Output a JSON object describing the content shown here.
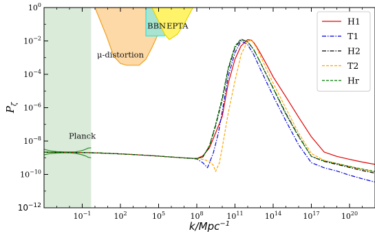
{
  "chart_data": {
    "type": "line",
    "xlabel": "k/Mpc",
    "xlabel_sup": "−1",
    "ylabel": "P",
    "ylabel_sub": "ζ",
    "x_scale": "log",
    "y_scale": "log",
    "xlim": [
      0.0001,
      1e+22
    ],
    "ylim": [
      1e-12,
      1
    ],
    "x_ticks": [
      {
        "value": 0.1,
        "base": "10",
        "exp": "−1"
      },
      {
        "value": 100,
        "base": "10",
        "exp": "2"
      },
      {
        "value": 100000,
        "base": "10",
        "exp": "5"
      },
      {
        "value": 100000000.0,
        "base": "10",
        "exp": "8"
      },
      {
        "value": 100000000000.0,
        "base": "10",
        "exp": "11"
      },
      {
        "value": 100000000000000.0,
        "base": "10",
        "exp": "14"
      },
      {
        "value": 1e+17,
        "base": "10",
        "exp": "17"
      },
      {
        "value": 1e+20,
        "base": "10",
        "exp": "20"
      }
    ],
    "y_ticks": [
      {
        "value": 1,
        "base": "10",
        "exp": "0"
      },
      {
        "value": 0.01,
        "base": "10",
        "exp": "−2"
      },
      {
        "value": 0.0001,
        "base": "10",
        "exp": "−4"
      },
      {
        "value": 1e-06,
        "base": "10",
        "exp": "−6"
      },
      {
        "value": 1e-08,
        "base": "10",
        "exp": "−8"
      },
      {
        "value": 1e-10,
        "base": "10",
        "exp": "−10"
      },
      {
        "value": 1e-12,
        "base": "10",
        "exp": "−12"
      }
    ],
    "legend_position": "top-right",
    "constraint_regions": [
      {
        "label": "Planck",
        "fill": "#d4e8d4",
        "x_range": [
          0.0001,
          0.5
        ],
        "label_at": [
          0.1,
          2e-08
        ]
      },
      {
        "label": "μ-distortion",
        "fill": "#fcd9a6",
        "stroke": "#f0a020",
        "boundary": [
          [
            1,
            1
          ],
          [
            8,
            0.02
          ],
          [
            30,
            0.0012
          ],
          [
            100,
            0.00045
          ],
          [
            300,
            0.00035
          ],
          [
            3000,
            0.00035
          ],
          [
            10000,
            0.0008
          ],
          [
            30000,
            0.004
          ],
          [
            100000,
            0.03
          ],
          [
            300000,
            0.5
          ],
          [
            500000,
            1
          ]
        ],
        "label_at": [
          100,
          0.0015
        ]
      },
      {
        "label": "BBN",
        "fill": "#a8e4cf",
        "stroke": "#00e5ee",
        "x_range": [
          10000,
          300000
        ],
        "y_floor": 0.02,
        "label_at": [
          70000,
          0.08
        ]
      },
      {
        "label": "EPTA",
        "fill": "#fff36a",
        "stroke": "#e8d400",
        "boundary": [
          [
            30000,
            1
          ],
          [
            100000,
            0.15
          ],
          [
            300000,
            0.025
          ],
          [
            700000,
            0.012
          ],
          [
            3000000,
            0.025
          ],
          [
            10000000,
            0.1
          ],
          [
            50000000,
            1
          ]
        ],
        "label_at": [
          3000000,
          0.08
        ]
      }
    ],
    "planck_band": {
      "color": "#2e8b2e",
      "x": [
        0.0001,
        0.0003,
        0.001,
        0.003,
        0.01,
        0.03,
        0.1,
        0.2,
        0.3,
        0.5
      ],
      "center": [
        2.2e-09,
        2.15e-09,
        2.12e-09,
        2.1e-09,
        2.08e-09,
        2.06e-09,
        2.04e-09,
        2.03e-09,
        2.02e-09,
        2e-09
      ],
      "upper": [
        3.2e-09,
        2.6e-09,
        2.35e-09,
        2.25e-09,
        2.2e-09,
        2.25e-09,
        2.7e-09,
        3.3e-09,
        3.8e-09,
        3.9e-09
      ],
      "lower": [
        1.5e-09,
        1.8e-09,
        1.9e-09,
        1.95e-09,
        1.95e-09,
        1.85e-09,
        1.5e-09,
        1.25e-09,
        1.05e-09,
        1e-09
      ]
    },
    "series": [
      {
        "name": "H1",
        "color": "#e00000",
        "dash": "",
        "x": [
          0.0001,
          0.001,
          0.01,
          0.1,
          1,
          10,
          100,
          1000,
          10000,
          100000,
          1000000,
          10000000,
          100000000,
          300000000,
          1000000000,
          3000000000,
          10000000000,
          30000000000,
          100000000000,
          300000000000,
          1000000000000,
          2000000000000,
          3000000000000,
          5000000000000,
          10000000000000,
          30000000000000,
          100000000000000,
          1000000000000000.0,
          1e+16,
          1e+17,
          1e+18,
          1e+19,
          1e+20,
          1e+21,
          1e+22
        ],
        "y": [
          2.15e-09,
          2.1e-09,
          2.06e-09,
          2.02e-09,
          1.97e-09,
          1.85e-09,
          1.7e-09,
          1.55e-09,
          1.4e-09,
          1.25e-09,
          1.1e-09,
          9.8e-10,
          9e-10,
          1.3e-09,
          4e-09,
          3e-08,
          3e-07,
          3e-05,
          0.0008,
          0.005,
          0.012,
          0.011,
          0.008,
          0.0045,
          0.0018,
          0.0004,
          7e-05,
          4.5e-06,
          2.7e-07,
          1.8e-08,
          2.2e-09,
          1.2e-09,
          8e-10,
          5.5e-10,
          4e-10
        ]
      },
      {
        "name": "T1",
        "color": "#0000e0",
        "dash": "6,2,1.5,2",
        "x": [
          0.0001,
          0.001,
          0.01,
          0.1,
          1,
          10,
          100,
          1000,
          10000,
          100000,
          1000000,
          10000000,
          100000000,
          300000000,
          700000000,
          1000000000,
          2000000000,
          5000000000,
          10000000000,
          30000000000,
          100000000000,
          300000000000,
          1000000000000,
          3000000000000,
          10000000000000,
          100000000000000,
          1000000000000000.0,
          1e+16,
          1e+17,
          1e+18,
          1e+19,
          1e+20,
          1e+21,
          1e+22
        ],
        "y": [
          2.15e-09,
          2.1e-09,
          2.06e-09,
          2.02e-09,
          1.97e-09,
          1.85e-09,
          1.7e-09,
          1.55e-09,
          1.4e-09,
          1.25e-09,
          1.1e-09,
          9.8e-10,
          8.5e-10,
          5e-10,
          2.5e-10,
          5e-10,
          2e-09,
          3e-08,
          6e-07,
          8e-05,
          0.002,
          0.01,
          0.006,
          0.0015,
          0.0002,
          5e-06,
          1.6e-07,
          6e-09,
          5e-10,
          2.5e-10,
          1.6e-10,
          9e-11,
          5.5e-11,
          3.5e-11
        ]
      },
      {
        "name": "H2",
        "color": "#000000",
        "dash": "6,2,1.5,2",
        "x": [
          0.0001,
          0.001,
          0.01,
          0.1,
          1,
          10,
          100,
          1000,
          10000,
          100000,
          1000000,
          10000000,
          100000000,
          300000000,
          1000000000,
          3000000000,
          10000000000,
          30000000000,
          100000000000,
          300000000000,
          1000000000000,
          3000000000000,
          10000000000000,
          100000000000000,
          1000000000000000.0,
          1e+16,
          1e+17,
          1e+18,
          1e+19,
          1e+20,
          1e+21,
          1e+22
        ],
        "y": [
          2.15e-09,
          2.1e-09,
          2.06e-09,
          2.02e-09,
          1.97e-09,
          1.85e-09,
          1.7e-09,
          1.55e-09,
          1.4e-09,
          1.25e-09,
          1.1e-09,
          9.8e-10,
          9e-10,
          1.1e-09,
          5e-09,
          8e-08,
          3e-06,
          0.0002,
          0.004,
          0.012,
          0.009,
          0.003,
          0.0005,
          1.5e-05,
          4.5e-07,
          2e-08,
          1.2e-09,
          6e-10,
          4e-10,
          2.6e-10,
          1.7e-10,
          1.2e-10
        ]
      },
      {
        "name": "T2",
        "color": "#ffa500",
        "dash": "4,2",
        "x": [
          0.0001,
          0.001,
          0.01,
          0.1,
          1,
          10,
          100,
          1000,
          10000,
          100000,
          1000000,
          10000000,
          100000000,
          300000000,
          1000000000,
          2000000000,
          3000000000,
          6000000000,
          10000000000,
          30000000000,
          100000000000,
          300000000000,
          1000000000000,
          2000000000000,
          5000000000000,
          10000000000000,
          100000000000000,
          1000000000000000.0,
          1e+16,
          1e+17,
          1e+18,
          1e+19,
          1e+20,
          1e+21,
          1e+22
        ],
        "y": [
          2.15e-09,
          2.1e-09,
          2.06e-09,
          2.02e-09,
          1.97e-09,
          1.85e-09,
          1.7e-09,
          1.55e-09,
          1.4e-09,
          1.25e-09,
          1.1e-09,
          9.8e-10,
          9e-10,
          8e-10,
          6e-10,
          3.5e-10,
          1.5e-10,
          5e-10,
          4e-09,
          5e-07,
          4e-05,
          0.0015,
          0.01,
          0.011,
          0.004,
          0.0012,
          3e-05,
          9e-07,
          3e-08,
          1.8e-09,
          7e-10,
          4.5e-10,
          3e-10,
          2e-10,
          1.4e-10
        ]
      },
      {
        "name": "Hr",
        "color": "#007a00",
        "dash": "4,2",
        "x": [
          0.0001,
          0.001,
          0.01,
          0.1,
          1,
          10,
          100,
          1000,
          10000,
          100000,
          1000000,
          10000000,
          100000000,
          300000000,
          1000000000,
          3000000000,
          10000000000,
          30000000000,
          100000000000,
          300000000000,
          1000000000000,
          3000000000000,
          10000000000000,
          100000000000000,
          1000000000000000.0,
          1e+16,
          1e+17,
          1e+18,
          1e+19,
          1e+20,
          1e+21,
          1e+22
        ],
        "y": [
          2.15e-09,
          2.1e-09,
          2.06e-09,
          2.02e-09,
          1.97e-09,
          1.85e-09,
          1.7e-09,
          1.55e-09,
          1.4e-09,
          1.25e-09,
          1.1e-09,
          9.8e-10,
          9e-10,
          1.1e-09,
          5.5e-09,
          1e-07,
          4e-06,
          0.00025,
          0.005,
          0.013,
          0.009,
          0.003,
          0.0005,
          1.4e-05,
          4e-07,
          1.8e-08,
          1.2e-09,
          6.5e-10,
          4.5e-10,
          3e-10,
          2.1e-10,
          1.5e-10
        ]
      }
    ]
  }
}
